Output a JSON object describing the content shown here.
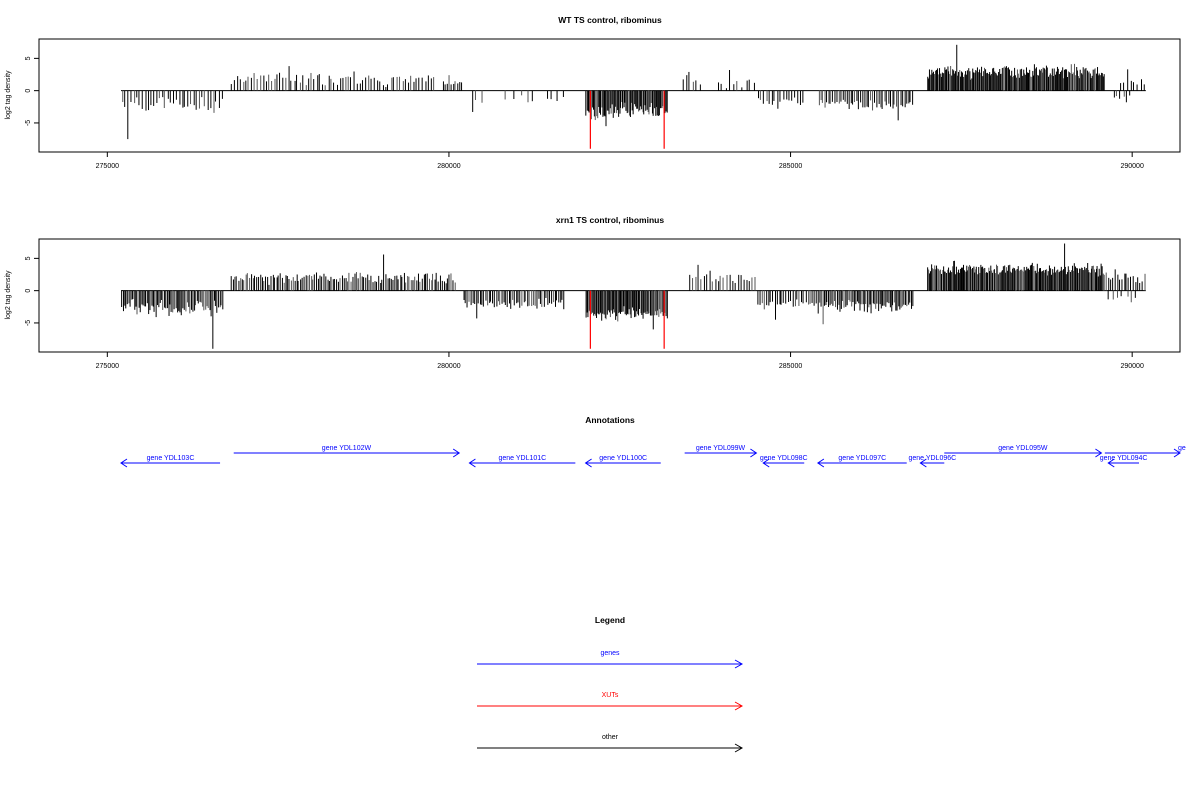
{
  "chart_data": [
    {
      "type": "bar",
      "title": "WT TS control, ribominus",
      "xlabel": "",
      "ylabel": "log2 tag density",
      "xlim": [
        274000,
        290700
      ],
      "ylim": [
        -9.5,
        8
      ],
      "xticks": [
        275000,
        280000,
        285000,
        290000
      ],
      "yticks": [
        5,
        0,
        -5
      ],
      "grid": false,
      "color": "#000000",
      "segments": [
        {
          "x": [
            275200,
            276700
          ],
          "side": "neg",
          "mean": -2.3,
          "spread": 1.3,
          "min": -7.5,
          "density": 0.35
        },
        {
          "x": [
            276800,
            279800
          ],
          "side": "pos",
          "mean": 1.8,
          "spread": 1.0,
          "max": 3.8,
          "density": 0.35
        },
        {
          "x": [
            279900,
            280200
          ],
          "side": "pos",
          "mean": 1.6,
          "spread": 0.7,
          "max": 2.4,
          "density": 0.5
        },
        {
          "x": [
            280300,
            280500
          ],
          "side": "neg",
          "mean": -1.6,
          "spread": 1.0,
          "min": -3.3,
          "density": 0.25
        },
        {
          "x": [
            280800,
            281300
          ],
          "side": "neg",
          "mean": -1.2,
          "spread": 0.6,
          "min": -1.8,
          "density": 0.15
        },
        {
          "x": [
            281400,
            281700
          ],
          "side": "neg",
          "mean": -1.0,
          "spread": 0.6,
          "min": -1.6,
          "density": 0.2
        },
        {
          "x": [
            282000,
            283200
          ],
          "side": "neg",
          "mean": -3.2,
          "spread": 1.2,
          "min": -5.5,
          "density": 0.95
        },
        {
          "x": [
            283400,
            283700
          ],
          "side": "pos",
          "mean": 1.7,
          "spread": 0.8,
          "max": 2.9,
          "density": 0.3
        },
        {
          "x": [
            283900,
            284500
          ],
          "side": "pos",
          "mean": 1.4,
          "spread": 0.9,
          "max": 3.2,
          "density": 0.25
        },
        {
          "x": [
            284500,
            285200
          ],
          "side": "neg",
          "mean": -1.6,
          "spread": 0.8,
          "min": -2.8,
          "density": 0.35
        },
        {
          "x": [
            285400,
            286800
          ],
          "side": "neg",
          "mean": -2.2,
          "spread": 0.9,
          "min": -4.6,
          "density": 0.5
        },
        {
          "x": [
            287000,
            289600
          ],
          "side": "pos",
          "mean": 2.9,
          "spread": 1.0,
          "max": 7.1,
          "density": 1.0
        },
        {
          "x": [
            289700,
            290000
          ],
          "side": "neg",
          "mean": -1.2,
          "spread": 0.5,
          "min": -1.8,
          "density": 0.3
        },
        {
          "x": [
            289800,
            290200
          ],
          "side": "pos",
          "mean": 1.3,
          "spread": 0.7,
          "max": 3.3,
          "density": 0.3
        }
      ],
      "red_marks": [
        {
          "x": 282070,
          "y": -9.0
        },
        {
          "x": 283150,
          "y": -9.0
        }
      ]
    },
    {
      "type": "bar",
      "title": "xrn1 TS control, ribominus",
      "xlabel": "",
      "ylabel": "log2 tag density",
      "xlim": [
        274000,
        290700
      ],
      "ylim": [
        -9.5,
        8
      ],
      "xticks": [
        275000,
        280000,
        285000,
        290000
      ],
      "yticks": [
        5,
        0,
        -5
      ],
      "grid": false,
      "color": "#000000",
      "segments": [
        {
          "x": [
            275200,
            276700
          ],
          "side": "neg",
          "mean": -2.8,
          "spread": 1.3,
          "min": -9.0,
          "density": 0.7
        },
        {
          "x": [
            276800,
            280100
          ],
          "side": "pos",
          "mean": 2.0,
          "spread": 1.0,
          "max": 5.6,
          "density": 0.55
        },
        {
          "x": [
            280200,
            281700
          ],
          "side": "neg",
          "mean": -2.1,
          "spread": 0.9,
          "min": -4.3,
          "density": 0.55
        },
        {
          "x": [
            282000,
            283200
          ],
          "side": "neg",
          "mean": -3.5,
          "spread": 1.2,
          "min": -6.0,
          "density": 0.95
        },
        {
          "x": [
            283500,
            284500
          ],
          "side": "pos",
          "mean": 1.8,
          "spread": 0.9,
          "max": 4.0,
          "density": 0.35
        },
        {
          "x": [
            284500,
            285400
          ],
          "side": "neg",
          "mean": -2.0,
          "spread": 0.8,
          "min": -4.5,
          "density": 0.45
        },
        {
          "x": [
            285400,
            286800
          ],
          "side": "neg",
          "mean": -2.4,
          "spread": 1.0,
          "min": -5.2,
          "density": 0.7
        },
        {
          "x": [
            287000,
            289600
          ],
          "side": "pos",
          "mean": 3.4,
          "spread": 1.0,
          "max": 7.3,
          "density": 1.0
        },
        {
          "x": [
            289600,
            290200
          ],
          "side": "pos",
          "mean": 2.0,
          "spread": 0.8,
          "max": 3.3,
          "density": 0.45
        },
        {
          "x": [
            289600,
            290100
          ],
          "side": "neg",
          "mean": -1.0,
          "spread": 0.5,
          "min": -1.8,
          "density": 0.2
        }
      ],
      "red_marks": [
        {
          "x": 282070,
          "y": -9.0
        },
        {
          "x": 283150,
          "y": -9.0
        }
      ]
    }
  ],
  "annotations": {
    "title": "Annotations",
    "color": "#0000ff",
    "genes": [
      {
        "label": "gene YDL103C",
        "start": 275200,
        "end": 276650,
        "strand": "-"
      },
      {
        "label": "gene YDL102W",
        "start": 276850,
        "end": 280150,
        "strand": "+"
      },
      {
        "label": "gene YDL101C",
        "start": 280300,
        "end": 281850,
        "strand": "-"
      },
      {
        "label": "gene YDL100C",
        "start": 282000,
        "end": 283100,
        "strand": "-"
      },
      {
        "label": "gene YDL099W",
        "start": 283450,
        "end": 284500,
        "strand": "+"
      },
      {
        "label": "gene YDL098C",
        "start": 284600,
        "end": 285200,
        "strand": "-"
      },
      {
        "label": "gene YDL097C",
        "start": 285400,
        "end": 286700,
        "strand": "-"
      },
      {
        "label": "gene YDL096C",
        "start": 286900,
        "end": 287250,
        "strand": "-"
      },
      {
        "label": "gene YDL095W",
        "start": 287250,
        "end": 289550,
        "strand": "+"
      },
      {
        "label": "gene YDL094C",
        "start": 289650,
        "end": 290100,
        "strand": "-"
      },
      {
        "label": "ge",
        "start": 289600,
        "end": 290700,
        "strand": "+"
      }
    ]
  },
  "legend": {
    "title": "Legend",
    "items": [
      {
        "label": "genes",
        "color": "#0000ff"
      },
      {
        "label": "XUTs",
        "color": "#ff0000"
      },
      {
        "label": "other",
        "color": "#000000"
      }
    ]
  }
}
